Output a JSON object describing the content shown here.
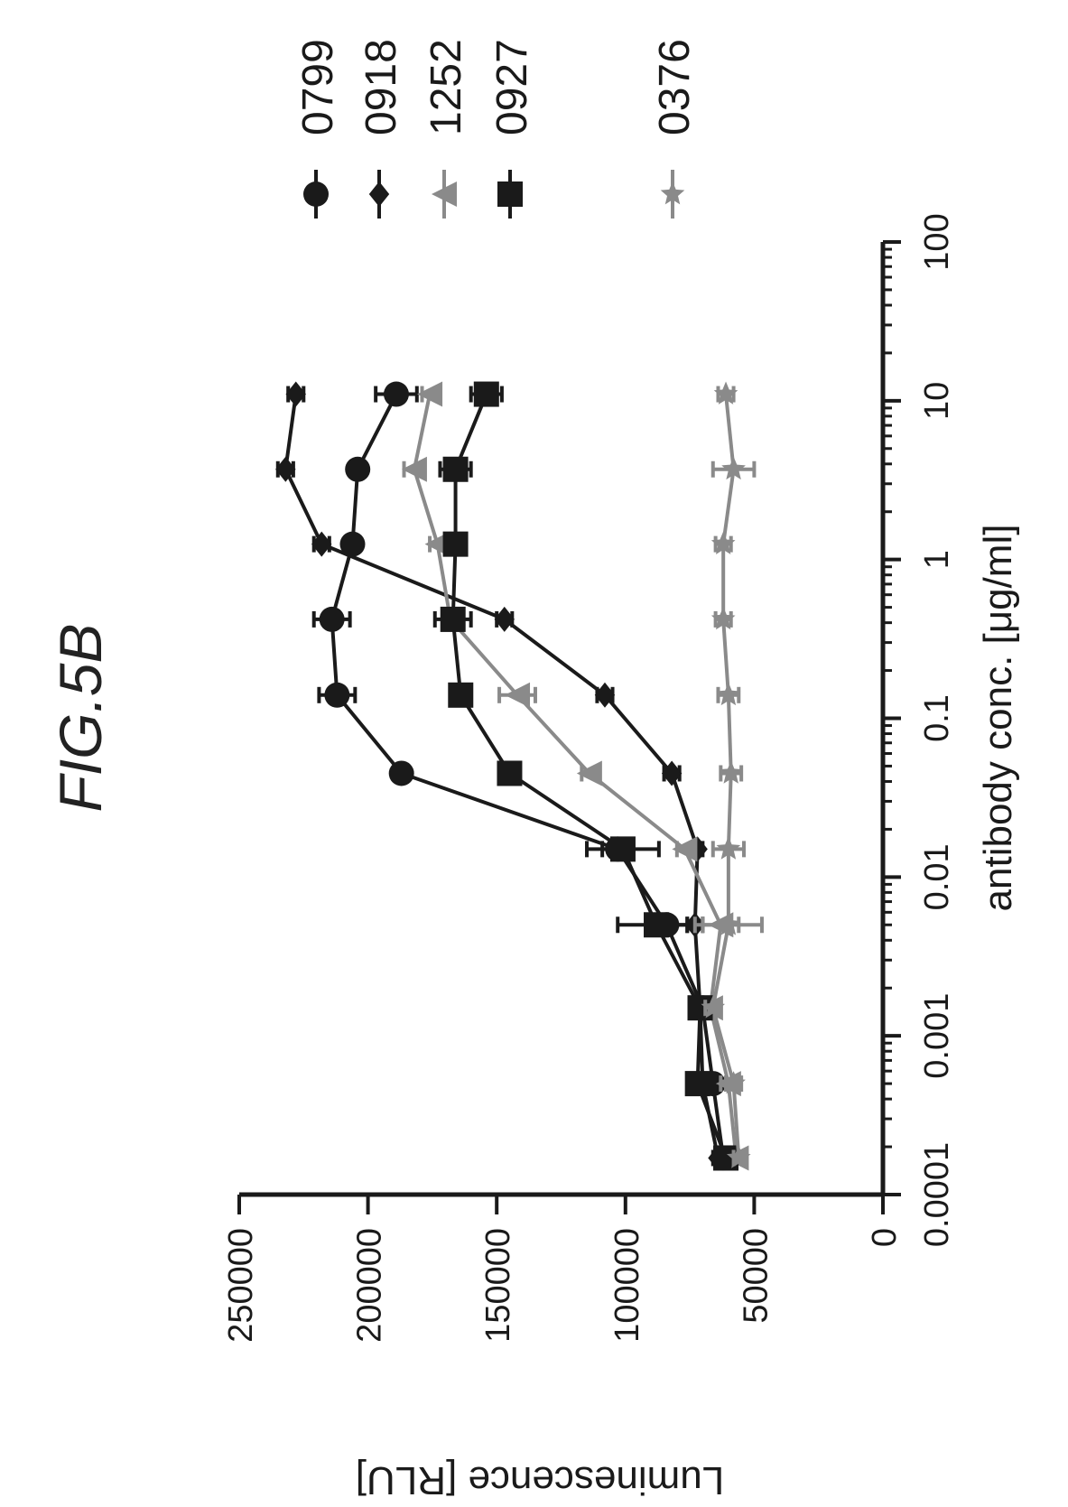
{
  "figure": {
    "label": "FIG.5B"
  },
  "chart_data": {
    "type": "line",
    "title": "FIG.5B",
    "xlabel": "antibody conc. [μg/ml]",
    "ylabel": "Luminescence [RLU]",
    "x_scale": "log",
    "xlim": [
      0.0001,
      100
    ],
    "ylim": [
      0,
      250000
    ],
    "x_ticks": [
      "0.0001",
      "0.001",
      "0.01",
      "0.1",
      "1",
      "10",
      "100"
    ],
    "y_ticks": [
      "0",
      "50000",
      "100000",
      "150000",
      "200000",
      "250000"
    ],
    "grid": false,
    "legend_position": "right",
    "x": [
      0.00017,
      0.0005,
      0.0015,
      0.005,
      0.015,
      0.045,
      0.14,
      0.42,
      1.25,
      3.7,
      11
    ],
    "series": [
      {
        "name": "0799",
        "marker": "circle",
        "color": "#1a1a1a",
        "values": [
          62000,
          66000,
          70000,
          84000,
          103000,
          187000,
          212000,
          214000,
          206000,
          204000,
          189000
        ],
        "errors": [
          2000,
          3000,
          3000,
          8000,
          6000,
          3000,
          7000,
          7000,
          3000,
          3000,
          8000
        ]
      },
      {
        "name": "0918",
        "marker": "diamond",
        "color": "#1a1a1a",
        "values": [
          64000,
          70000,
          71000,
          73000,
          72000,
          82000,
          108000,
          147000,
          218000,
          232000,
          228000
        ],
        "errors": [
          2000,
          2000,
          2000,
          3000,
          2000,
          3000,
          3000,
          3000,
          3000,
          3000,
          3000
        ]
      },
      {
        "name": "1252",
        "marker": "triangle",
        "color": "#8a8a8a",
        "values": [
          57000,
          60000,
          67000,
          63000,
          77000,
          114000,
          142000,
          168000,
          173000,
          182000,
          176000
        ],
        "errors": [
          2000,
          3000,
          3000,
          7000,
          3000,
          3000,
          7000,
          3000,
          3000,
          4000,
          3000
        ]
      },
      {
        "name": "0927",
        "marker": "square",
        "color": "#1a1a1a",
        "values": [
          61000,
          72000,
          71000,
          88000,
          101000,
          145000,
          164000,
          167000,
          166000,
          166000,
          154000
        ],
        "errors": [
          2000,
          3000,
          3000,
          15000,
          14000,
          3000,
          3000,
          7000,
          3000,
          6000,
          6000
        ]
      },
      {
        "name": "0376",
        "marker": "star",
        "color": "#8a8a8a",
        "values": [
          56000,
          58000,
          66000,
          60000,
          60000,
          59000,
          60000,
          62000,
          62000,
          58000,
          61000
        ],
        "errors": [
          2000,
          3000,
          3000,
          13000,
          6000,
          4000,
          4000,
          3000,
          3000,
          8000,
          3000
        ]
      }
    ]
  }
}
